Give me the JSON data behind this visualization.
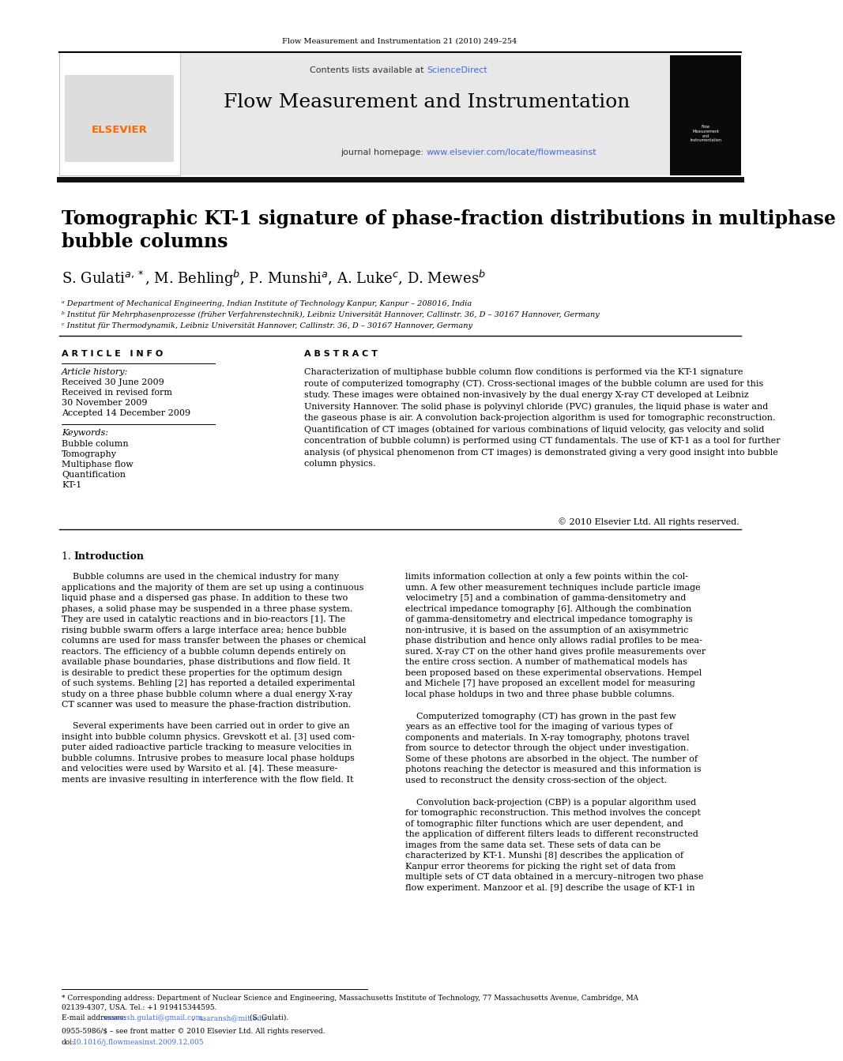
{
  "page_width": 9.92,
  "page_height": 13.23,
  "bg_color": "#ffffff",
  "journal_ref": "Flow Measurement and Instrumentation 21 (2010) 249–254",
  "contents_prefix": "Contents lists available at ",
  "sciencedirect_text": "ScienceDirect",
  "sciencedirect_color": "#4169E1",
  "journal_name": "Flow Measurement and Instrumentation",
  "homepage_prefix": "journal homepage: ",
  "homepage_url": "www.elsevier.com/locate/flowmeasinst",
  "homepage_color": "#4169E1",
  "header_bg": "#e8e8e8",
  "elsevier_color": "#FF6600",
  "article_title_line1": "Tomographic KT-1 signature of phase-fraction distributions in multiphase",
  "article_title_line2": "bubble columns",
  "author_line": "S. Gulati$^{a,*}$, M. Behling$^{b}$, P. Munshi$^{a}$, A. Luke$^{c}$, D. Mewes$^{b}$",
  "affil_a": "ᵃ Department of Mechanical Engineering, Indian Institute of Technology Kanpur, Kanpur – 208016, India",
  "affil_b": "ᵇ Institut für Mehrphasenprozesse (früher Verfahrenstechnik), Leibniz Universität Hannover, Callinstr. 36, D – 30167 Hannover, Germany",
  "affil_c": "ᶜ Institut für Thermodynamik, Leibniz Universität Hannover, Callinstr. 36, D – 30167 Hannover, Germany",
  "art_info_header": "A R T I C L E   I N F O",
  "abstract_header": "A B S T R A C T",
  "art_history_label": "Article history:",
  "received1": "Received 30 June 2009",
  "received_revised_label": "Received in revised form",
  "revised_date": "30 November 2009",
  "accepted": "Accepted 14 December 2009",
  "keywords_label": "Keywords:",
  "keywords": [
    "Bubble column",
    "Tomography",
    "Multiphase flow",
    "Quantification",
    "KT-1"
  ],
  "abstract_text": "Characterization of multiphase bubble column flow conditions is performed via the KT-1 signature\nroute of computerized tomography (CT). Cross-sectional images of the bubble column are used for this\nstudy. These images were obtained non-invasively by the dual energy X-ray CT developed at Leibniz\nUniversity Hannover. The solid phase is polyvinyl chloride (PVC) granules, the liquid phase is water and\nthe gaseous phase is air. A convolution back-projection algorithm is used for tomographic reconstruction.\nQuantification of CT images (obtained for various combinations of liquid velocity, gas velocity and solid\nconcentration of bubble column) is performed using CT fundamentals. The use of KT-1 as a tool for further\nanalysis (of physical phenomenon from CT images) is demonstrated giving a very good insight into bubble\ncolumn physics.",
  "copyright": "© 2010 Elsevier Ltd. All rights reserved.",
  "intro_heading_num": "1.",
  "intro_heading_text": "Introduction",
  "intro_col1_text": "    Bubble columns are used in the chemical industry for many\napplications and the majority of them are set up using a continuous\nliquid phase and a dispersed gas phase. In addition to these two\nphases, a solid phase may be suspended in a three phase system.\nThey are used in catalytic reactions and in bio-reactors [1]. The\nrising bubble swarm offers a large interface area; hence bubble\ncolumns are used for mass transfer between the phases or chemical\nreactors. The efficiency of a bubble column depends entirely on\navailable phase boundaries, phase distributions and flow field. It\nis desirable to predict these properties for the optimum design\nof such systems. Behling [2] has reported a detailed experimental\nstudy on a three phase bubble column where a dual energy X-ray\nCT scanner was used to measure the phase-fraction distribution.\n\n    Several experiments have been carried out in order to give an\ninsight into bubble column physics. Grevskott et al. [3] used com-\nputer aided radioactive particle tracking to measure velocities in\nbubble columns. Intrusive probes to measure local phase holdups\nand velocities were used by Warsito et al. [4]. These measure-\nments are invasive resulting in interference with the flow field. It",
  "intro_col2_text": "limits information collection at only a few points within the col-\numn. A few other measurement techniques include particle image\nvelocimetry [5] and a combination of gamma-densitometry and\nelectrical impedance tomography [6]. Although the combination\nof gamma-densitometry and electrical impedance tomography is\nnon-intrusive, it is based on the assumption of an axisymmetric\nphase distribution and hence only allows radial profiles to be mea-\nsured. X-ray CT on the other hand gives profile measurements over\nthe entire cross section. A number of mathematical models has\nbeen proposed based on these experimental observations. Hempel\nand Michele [7] have proposed an excellent model for measuring\nlocal phase holdups in two and three phase bubble columns.\n\n    Computerized tomography (CT) has grown in the past few\nyears as an effective tool for the imaging of various types of\ncomponents and materials. In X-ray tomography, photons travel\nfrom source to detector through the object under investigation.\nSome of these photons are absorbed in the object. The number of\nphotons reaching the detector is measured and this information is\nused to reconstruct the density cross-section of the object.\n\n    Convolution back-projection (CBP) is a popular algorithm used\nfor tomographic reconstruction. This method involves the concept\nof tomographic filter functions which are user dependent, and\nthe application of different filters leads to different reconstructed\nimages from the same data set. These sets of data can be\ncharacterized by KT-1. Munshi [8] describes the application of\nKanpur error theorems for picking the right set of data from\nmultiple sets of CT data obtained in a mercury–nitrogen two phase\nflow experiment. Manzoor et al. [9] describe the usage of KT-1 in",
  "footer_footnote_line1": "* Corresponding address: Department of Nuclear Science and Engineering, Massachusetts Institute of Technology, 77 Massachusetts Avenue, Cambridge, MA",
  "footer_footnote_line2": "02139-4307, USA. Tel.: +1 919415344595.",
  "footer_email_label": "E-mail addresses: ",
  "footer_email_addr1": "saaransh.gulati@gmail.com",
  "footer_email_comma": ", ",
  "footer_email_addr2": "saaransh@mit.edu",
  "footer_email_end": " (S. Gulati).",
  "footer_issn": "0955-5986/$ – see front matter © 2010 Elsevier Ltd. All rights reserved.",
  "footer_doi_prefix": "doi:",
  "footer_doi_link": "10.1016/j.flowmeasinst.2009.12.005"
}
